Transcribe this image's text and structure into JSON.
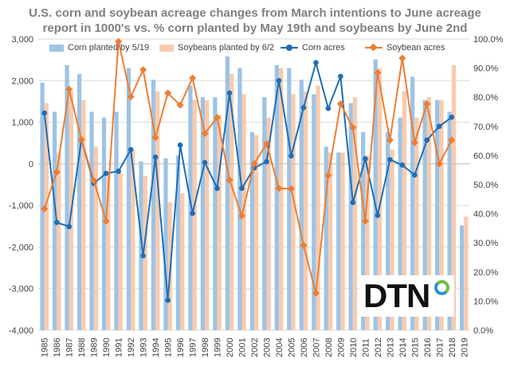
{
  "title_line1": "U.S. corn and soybean acreage changes from March intentions to June acreage",
  "title_line2": "report in 1000's vs. % corn planted by May 19th and soybeans by June 2nd",
  "brand": "DTN",
  "chart_data": {
    "type": "bar",
    "categories": [
      "1985",
      "1986",
      "1987",
      "1988",
      "1989",
      "1990",
      "1991",
      "1992",
      "1993",
      "1994",
      "1995",
      "1996",
      "1997",
      "1998",
      "1999",
      "2000",
      "2001",
      "2002",
      "2003",
      "2004",
      "2005",
      "2006",
      "2007",
      "2008",
      "2009",
      "2010",
      "2011",
      "2012",
      "2013",
      "2014",
      "2015",
      "2016",
      "2017",
      "2018",
      "2019"
    ],
    "y_left": {
      "min": -4000,
      "max": 3000,
      "step": 1000
    },
    "y_right": {
      "min": 0,
      "max": 100,
      "step": 10,
      "format": "percent"
    },
    "grid": true,
    "legend_position": "top",
    "series": [
      {
        "name": "Corn planted by  5/19",
        "type": "bar",
        "axis": "right",
        "color": "#9dc3e6",
        "values": [
          85,
          75,
          91,
          88,
          75,
          73,
          75,
          90,
          58,
          86,
          59,
          60,
          84,
          80,
          80,
          94,
          90,
          68,
          80,
          91,
          90,
          86,
          81,
          63,
          61,
          78,
          68,
          93,
          68,
          73,
          87,
          79,
          79,
          75,
          36
        ]
      },
      {
        "name": "Soybeans planted by 6/2",
        "type": "bar",
        "axis": "right",
        "color": "#f8cbad",
        "values": [
          78,
          61,
          82,
          79,
          63,
          54,
          54,
          62,
          53,
          82,
          44,
          47,
          79,
          79,
          74,
          88,
          81,
          67,
          73,
          90,
          81,
          82,
          84,
          61,
          61,
          80,
          60,
          90,
          62,
          82,
          73,
          80,
          79,
          91,
          39
        ]
      },
      {
        "name": "Corn acres",
        "type": "line",
        "axis": "left",
        "color": "#1f6db5",
        "values": [
          1220,
          -1410,
          -1510,
          580,
          -470,
          -230,
          -180,
          340,
          -2210,
          160,
          -3280,
          450,
          -1190,
          30,
          -590,
          1700,
          -590,
          -100,
          50,
          2000,
          190,
          1350,
          2430,
          1330,
          2100,
          -930,
          120,
          -1240,
          100,
          -30,
          -270,
          570,
          900,
          1120,
          null
        ]
      },
      {
        "name": "Soybean acres",
        "type": "line",
        "axis": "left",
        "color": "#ed7d31",
        "values": [
          -1080,
          -200,
          1790,
          580,
          -400,
          -1380,
          2940,
          1610,
          2260,
          630,
          1700,
          1410,
          2060,
          730,
          1110,
          -390,
          -1250,
          0,
          480,
          -590,
          -600,
          -1960,
          -3110,
          -280,
          1440,
          870,
          -1380,
          2190,
          570,
          2540,
          510,
          1440,
          0,
          570,
          null
        ]
      }
    ]
  }
}
